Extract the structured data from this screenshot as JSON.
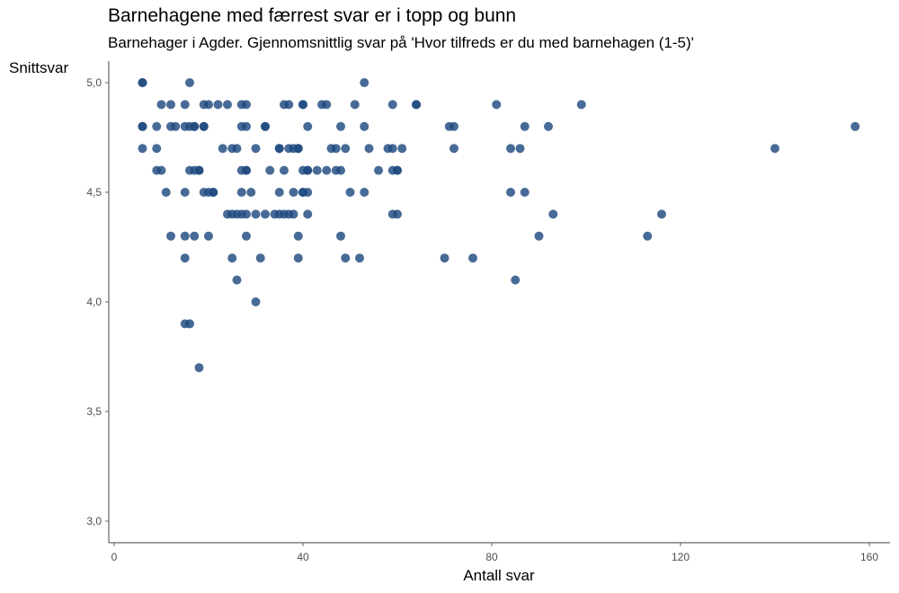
{
  "chart_data": {
    "type": "scatter",
    "title": "Barnehagene med færrest svar er i topp og bunn",
    "subtitle": "Barnehager i Agder. Gjennomsnittlig svar på 'Hvor tilfreds er du med barnehagen (1-5)'",
    "xlabel": "Antall svar",
    "ylabel": "Snittsvar",
    "xlim": [
      -1,
      163
    ],
    "ylim": [
      2.9,
      5.09
    ],
    "x_ticks": [
      0,
      40,
      80,
      120,
      160
    ],
    "x_tick_labels": [
      "0",
      "40",
      "80",
      "120",
      "160"
    ],
    "y_ticks": [
      3.0,
      3.5,
      4.0,
      4.5,
      5.0
    ],
    "y_tick_labels": [
      "3,0",
      "3,5",
      "4,0",
      "4,5",
      "5,0"
    ],
    "grid": false,
    "legend": "none",
    "point_color": "#1f4a7f",
    "point_opacity": 0.82,
    "points": [
      {
        "x": 6,
        "y": 5.0
      },
      {
        "x": 6,
        "y": 5.0
      },
      {
        "x": 6,
        "y": 4.8
      },
      {
        "x": 6,
        "y": 4.8
      },
      {
        "x": 6,
        "y": 4.7
      },
      {
        "x": 9,
        "y": 4.8
      },
      {
        "x": 9,
        "y": 4.7
      },
      {
        "x": 9,
        "y": 4.6
      },
      {
        "x": 10,
        "y": 4.6
      },
      {
        "x": 10,
        "y": 4.9
      },
      {
        "x": 11,
        "y": 4.5
      },
      {
        "x": 12,
        "y": 4.8
      },
      {
        "x": 12,
        "y": 4.3
      },
      {
        "x": 12,
        "y": 4.9
      },
      {
        "x": 13,
        "y": 4.8
      },
      {
        "x": 15,
        "y": 4.8
      },
      {
        "x": 15,
        "y": 4.9
      },
      {
        "x": 15,
        "y": 4.5
      },
      {
        "x": 15,
        "y": 4.3
      },
      {
        "x": 15,
        "y": 4.2
      },
      {
        "x": 15,
        "y": 3.9
      },
      {
        "x": 16,
        "y": 3.9
      },
      {
        "x": 16,
        "y": 5.0
      },
      {
        "x": 16,
        "y": 4.8
      },
      {
        "x": 16,
        "y": 4.6
      },
      {
        "x": 17,
        "y": 4.8
      },
      {
        "x": 17,
        "y": 4.8
      },
      {
        "x": 17,
        "y": 4.6
      },
      {
        "x": 17,
        "y": 4.3
      },
      {
        "x": 18,
        "y": 4.6
      },
      {
        "x": 18,
        "y": 4.6
      },
      {
        "x": 18,
        "y": 3.7
      },
      {
        "x": 19,
        "y": 4.8
      },
      {
        "x": 19,
        "y": 4.8
      },
      {
        "x": 19,
        "y": 4.5
      },
      {
        "x": 19,
        "y": 4.9
      },
      {
        "x": 20,
        "y": 4.9
      },
      {
        "x": 20,
        "y": 4.5
      },
      {
        "x": 20,
        "y": 4.3
      },
      {
        "x": 21,
        "y": 4.5
      },
      {
        "x": 21,
        "y": 4.5
      },
      {
        "x": 22,
        "y": 4.9
      },
      {
        "x": 23,
        "y": 4.7
      },
      {
        "x": 24,
        "y": 4.4
      },
      {
        "x": 24,
        "y": 4.9
      },
      {
        "x": 25,
        "y": 4.7
      },
      {
        "x": 25,
        "y": 4.4
      },
      {
        "x": 25,
        "y": 4.2
      },
      {
        "x": 26,
        "y": 4.7
      },
      {
        "x": 26,
        "y": 4.4
      },
      {
        "x": 26,
        "y": 4.1
      },
      {
        "x": 27,
        "y": 4.9
      },
      {
        "x": 27,
        "y": 4.8
      },
      {
        "x": 27,
        "y": 4.6
      },
      {
        "x": 27,
        "y": 4.5
      },
      {
        "x": 27,
        "y": 4.4
      },
      {
        "x": 28,
        "y": 4.9
      },
      {
        "x": 28,
        "y": 4.8
      },
      {
        "x": 28,
        "y": 4.6
      },
      {
        "x": 28,
        "y": 4.6
      },
      {
        "x": 28,
        "y": 4.4
      },
      {
        "x": 28,
        "y": 4.3
      },
      {
        "x": 29,
        "y": 4.5
      },
      {
        "x": 30,
        "y": 4.7
      },
      {
        "x": 30,
        "y": 4.4
      },
      {
        "x": 30,
        "y": 4.0
      },
      {
        "x": 31,
        "y": 4.2
      },
      {
        "x": 32,
        "y": 4.8
      },
      {
        "x": 32,
        "y": 4.8
      },
      {
        "x": 32,
        "y": 4.4
      },
      {
        "x": 33,
        "y": 4.6
      },
      {
        "x": 34,
        "y": 4.4
      },
      {
        "x": 35,
        "y": 4.7
      },
      {
        "x": 35,
        "y": 4.7
      },
      {
        "x": 35,
        "y": 4.5
      },
      {
        "x": 35,
        "y": 4.4
      },
      {
        "x": 36,
        "y": 4.9
      },
      {
        "x": 36,
        "y": 4.6
      },
      {
        "x": 36,
        "y": 4.4
      },
      {
        "x": 37,
        "y": 4.9
      },
      {
        "x": 37,
        "y": 4.7
      },
      {
        "x": 37,
        "y": 4.4
      },
      {
        "x": 38,
        "y": 4.7
      },
      {
        "x": 38,
        "y": 4.5
      },
      {
        "x": 38,
        "y": 4.4
      },
      {
        "x": 39,
        "y": 4.7
      },
      {
        "x": 39,
        "y": 4.7
      },
      {
        "x": 39,
        "y": 4.3
      },
      {
        "x": 39,
        "y": 4.2
      },
      {
        "x": 40,
        "y": 4.9
      },
      {
        "x": 40,
        "y": 4.9
      },
      {
        "x": 40,
        "y": 4.6
      },
      {
        "x": 40,
        "y": 4.5
      },
      {
        "x": 40,
        "y": 4.5
      },
      {
        "x": 41,
        "y": 4.8
      },
      {
        "x": 41,
        "y": 4.6
      },
      {
        "x": 41,
        "y": 4.6
      },
      {
        "x": 41,
        "y": 4.5
      },
      {
        "x": 41,
        "y": 4.4
      },
      {
        "x": 43,
        "y": 4.6
      },
      {
        "x": 44,
        "y": 4.9
      },
      {
        "x": 45,
        "y": 4.9
      },
      {
        "x": 45,
        "y": 4.6
      },
      {
        "x": 46,
        "y": 4.7
      },
      {
        "x": 47,
        "y": 4.7
      },
      {
        "x": 47,
        "y": 4.6
      },
      {
        "x": 48,
        "y": 4.8
      },
      {
        "x": 48,
        "y": 4.6
      },
      {
        "x": 48,
        "y": 4.3
      },
      {
        "x": 49,
        "y": 4.7
      },
      {
        "x": 49,
        "y": 4.2
      },
      {
        "x": 50,
        "y": 4.5
      },
      {
        "x": 51,
        "y": 4.9
      },
      {
        "x": 52,
        "y": 4.2
      },
      {
        "x": 53,
        "y": 5.0
      },
      {
        "x": 53,
        "y": 4.8
      },
      {
        "x": 53,
        "y": 4.5
      },
      {
        "x": 54,
        "y": 4.7
      },
      {
        "x": 56,
        "y": 4.6
      },
      {
        "x": 58,
        "y": 4.7
      },
      {
        "x": 59,
        "y": 4.9
      },
      {
        "x": 59,
        "y": 4.7
      },
      {
        "x": 59,
        "y": 4.6
      },
      {
        "x": 59,
        "y": 4.4
      },
      {
        "x": 60,
        "y": 4.6
      },
      {
        "x": 60,
        "y": 4.6
      },
      {
        "x": 60,
        "y": 4.4
      },
      {
        "x": 61,
        "y": 4.7
      },
      {
        "x": 64,
        "y": 4.9
      },
      {
        "x": 64,
        "y": 4.9
      },
      {
        "x": 70,
        "y": 4.2
      },
      {
        "x": 71,
        "y": 4.8
      },
      {
        "x": 72,
        "y": 4.8
      },
      {
        "x": 72,
        "y": 4.7
      },
      {
        "x": 76,
        "y": 4.2
      },
      {
        "x": 81,
        "y": 4.9
      },
      {
        "x": 84,
        "y": 4.7
      },
      {
        "x": 84,
        "y": 4.5
      },
      {
        "x": 85,
        "y": 4.1
      },
      {
        "x": 86,
        "y": 4.7
      },
      {
        "x": 87,
        "y": 4.8
      },
      {
        "x": 87,
        "y": 4.5
      },
      {
        "x": 90,
        "y": 4.3
      },
      {
        "x": 92,
        "y": 4.8
      },
      {
        "x": 93,
        "y": 4.4
      },
      {
        "x": 99,
        "y": 4.9
      },
      {
        "x": 113,
        "y": 4.3
      },
      {
        "x": 116,
        "y": 4.4
      },
      {
        "x": 140,
        "y": 4.7
      },
      {
        "x": 157,
        "y": 4.8
      }
    ]
  }
}
